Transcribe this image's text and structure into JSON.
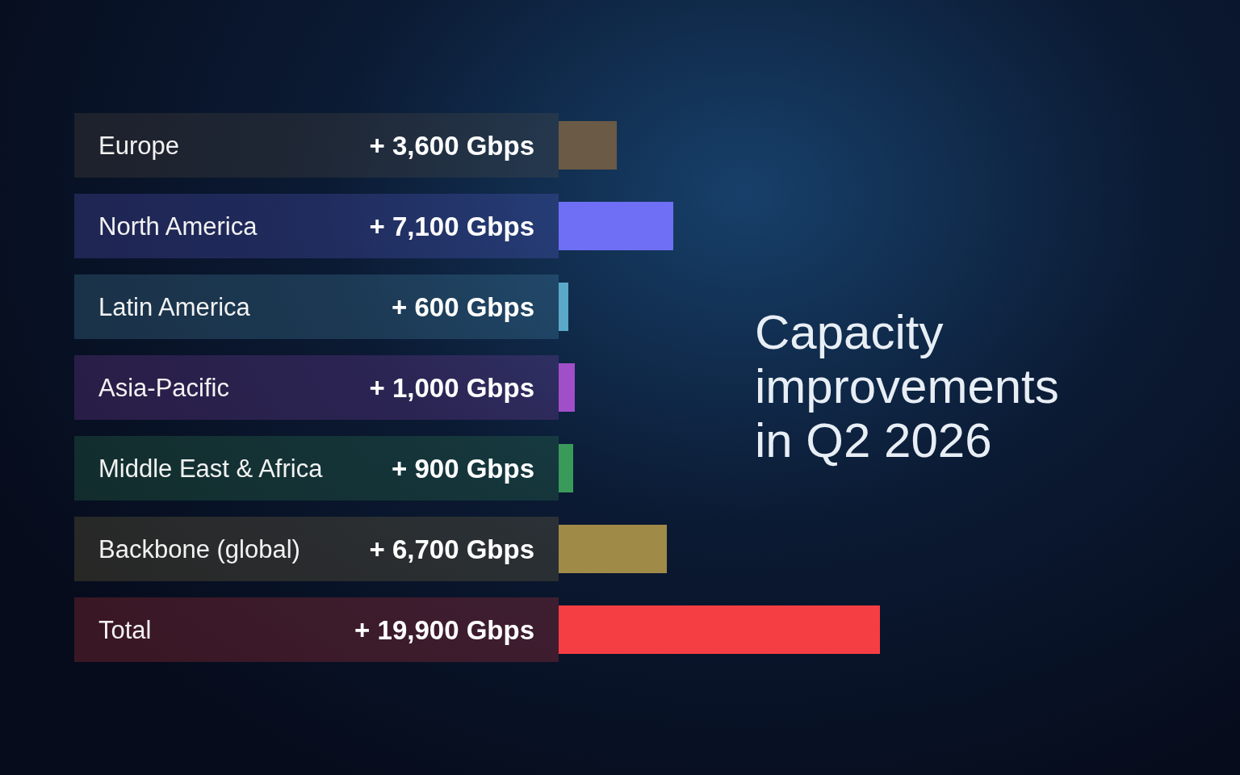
{
  "chart_data": {
    "type": "bar",
    "orientation": "horizontal",
    "title": "Capacity improvements in Q2 2026",
    "categories": [
      "Europe",
      "North America",
      "Latin America",
      "Asia-Pacific",
      "Middle East & Africa",
      "Backbone (global)",
      "Total"
    ],
    "values": [
      3600,
      7100,
      600,
      1000,
      900,
      6700,
      19900
    ],
    "colors": [
      "#6b5a45",
      "#6f6ff5",
      "#5aa9c9",
      "#a04fc9",
      "#3a9a5a",
      "#a08a48",
      "#f53e44"
    ],
    "value_labels": [
      "+ 3,600 Gbps",
      "+ 7,100 Gbps",
      "+ 600 Gbps",
      "+ 1,000 Gbps",
      "+ 900 Gbps",
      "+ 6,700 Gbps",
      "+ 19,900 Gbps"
    ]
  }
}
